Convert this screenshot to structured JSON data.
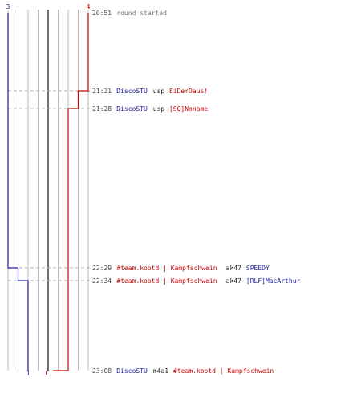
{
  "colors": {
    "team_blue": "#1a1aa6",
    "team_red": "#cc0000",
    "grid": "#bbbbbb",
    "center_line": "#707070",
    "guide": "#b0b0b0",
    "time_text": "#444444",
    "neutral_text": "#222222",
    "round_text": "#777777"
  },
  "chart_data": {
    "type": "line",
    "title": "",
    "xlabel": "",
    "ylabel": "",
    "x_range": [
      0,
      8
    ],
    "center_x": 4,
    "series": [
      {
        "color": "#1a1aa6",
        "start_count": "3",
        "end_count": "1",
        "points": [
          {
            "time": "20:51",
            "x": 0
          },
          {
            "time": "22:29",
            "x": 0
          },
          {
            "time": "22:29",
            "x": 1
          },
          {
            "time": "22:34",
            "x": 1
          },
          {
            "time": "22:34",
            "x": 2
          },
          {
            "time": "23:08",
            "x": 2
          }
        ]
      },
      {
        "color": "#cc0000",
        "start_count": "4",
        "end_count": "1",
        "points": [
          {
            "time": "20:51",
            "x": 8
          },
          {
            "time": "21:21",
            "x": 8
          },
          {
            "time": "21:21",
            "x": 7
          },
          {
            "time": "21:28",
            "x": 7
          },
          {
            "time": "21:28",
            "x": 6
          },
          {
            "time": "23:08",
            "x": 6
          },
          {
            "time": "23:08",
            "x": 4.5
          }
        ]
      }
    ],
    "events": [
      {
        "time": "20:51",
        "dashed": false,
        "parts": [
          {
            "text": "round started",
            "role": "round"
          }
        ]
      },
      {
        "time": "21:21",
        "dashed": true,
        "parts": [
          {
            "text": "DiscoSTU",
            "role": "blue"
          },
          {
            "text": "usp",
            "role": "neutral"
          },
          {
            "text": "EiDerDaus!",
            "role": "red"
          }
        ]
      },
      {
        "time": "21:28",
        "dashed": true,
        "parts": [
          {
            "text": "DiscoSTU",
            "role": "blue"
          },
          {
            "text": "usp",
            "role": "neutral"
          },
          {
            "text": "[SQ]Noname",
            "role": "red"
          }
        ]
      },
      {
        "time": "22:29",
        "dashed": true,
        "parts": [
          {
            "text": "#team.kootd | Kampfschwein",
            "role": "red"
          },
          {
            "text": "ak47",
            "role": "neutral"
          },
          {
            "text": "SPEEDY",
            "role": "blue"
          }
        ]
      },
      {
        "time": "22:34",
        "dashed": true,
        "parts": [
          {
            "text": "#team.kootd | Kampfschwein",
            "role": "red"
          },
          {
            "text": "ak47",
            "role": "neutral"
          },
          {
            "text": "[RLF]MacArthur",
            "role": "blue"
          }
        ]
      },
      {
        "time": "23:08",
        "dashed": false,
        "parts": [
          {
            "text": "DiscoSTU",
            "role": "blue"
          },
          {
            "text": "m4a1",
            "role": "neutral"
          },
          {
            "text": "#team.kootd | Kampfschwein",
            "role": "red"
          }
        ]
      }
    ]
  }
}
